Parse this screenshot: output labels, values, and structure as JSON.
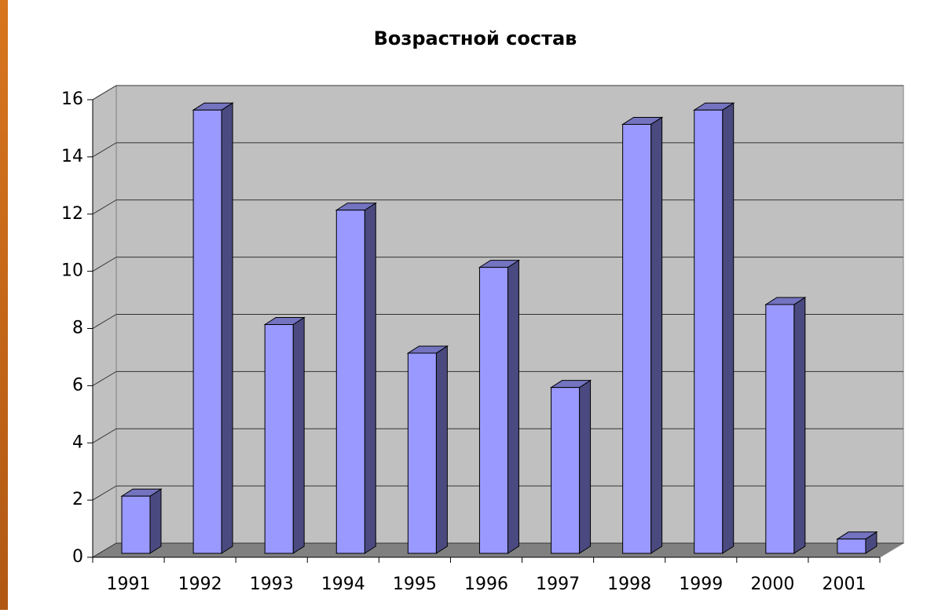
{
  "chart_data": {
    "type": "bar3d",
    "title": "Возрастной состав",
    "categories": [
      "1991",
      "1992",
      "1993",
      "1994",
      "1995",
      "1996",
      "1997",
      "1998",
      "1999",
      "2000",
      "2001"
    ],
    "values": [
      2,
      15.5,
      8,
      12,
      7,
      10,
      5.8,
      15,
      15.5,
      8.7,
      0.5
    ],
    "color": "#9999ff",
    "ylim": [
      0,
      16
    ],
    "yticks": [
      0,
      2,
      4,
      6,
      8,
      10,
      12,
      14,
      16
    ],
    "grid": true
  }
}
